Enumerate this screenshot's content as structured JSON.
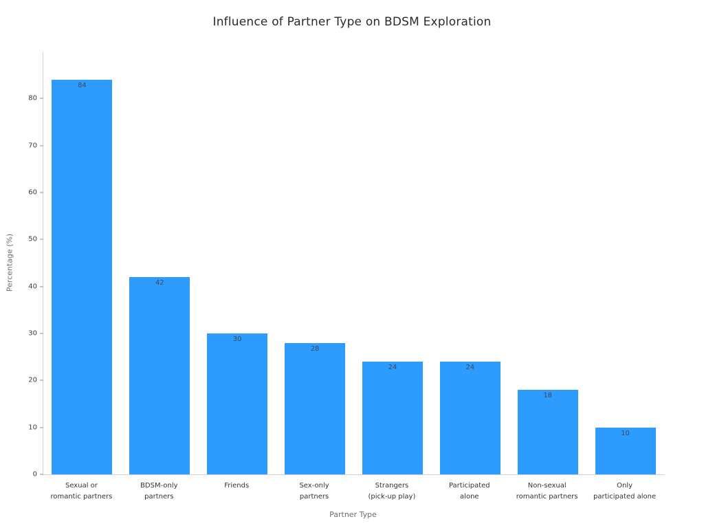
{
  "chart_data": {
    "type": "bar",
    "title": "Influence of Partner Type on BDSM Exploration",
    "xlabel": "Partner Type",
    "ylabel": "Percentage (%)",
    "categories": [
      "Sexual or\nromantic partners",
      "BDSM-only\npartners",
      "Friends",
      "Sex-only\npartners",
      "Strangers\n(pick-up play)",
      "Participated\nalone",
      "Non-sexual\nromantic partners",
      "Only\nparticipated alone"
    ],
    "values": [
      84,
      42,
      30,
      28,
      24,
      24,
      18,
      10
    ],
    "yticks": [
      0,
      10,
      20,
      30,
      40,
      50,
      60,
      70,
      80
    ],
    "ylim": [
      0,
      90
    ],
    "bar_color": "#2d9cfe",
    "grid": false,
    "legend": "none",
    "value_labels": true
  }
}
